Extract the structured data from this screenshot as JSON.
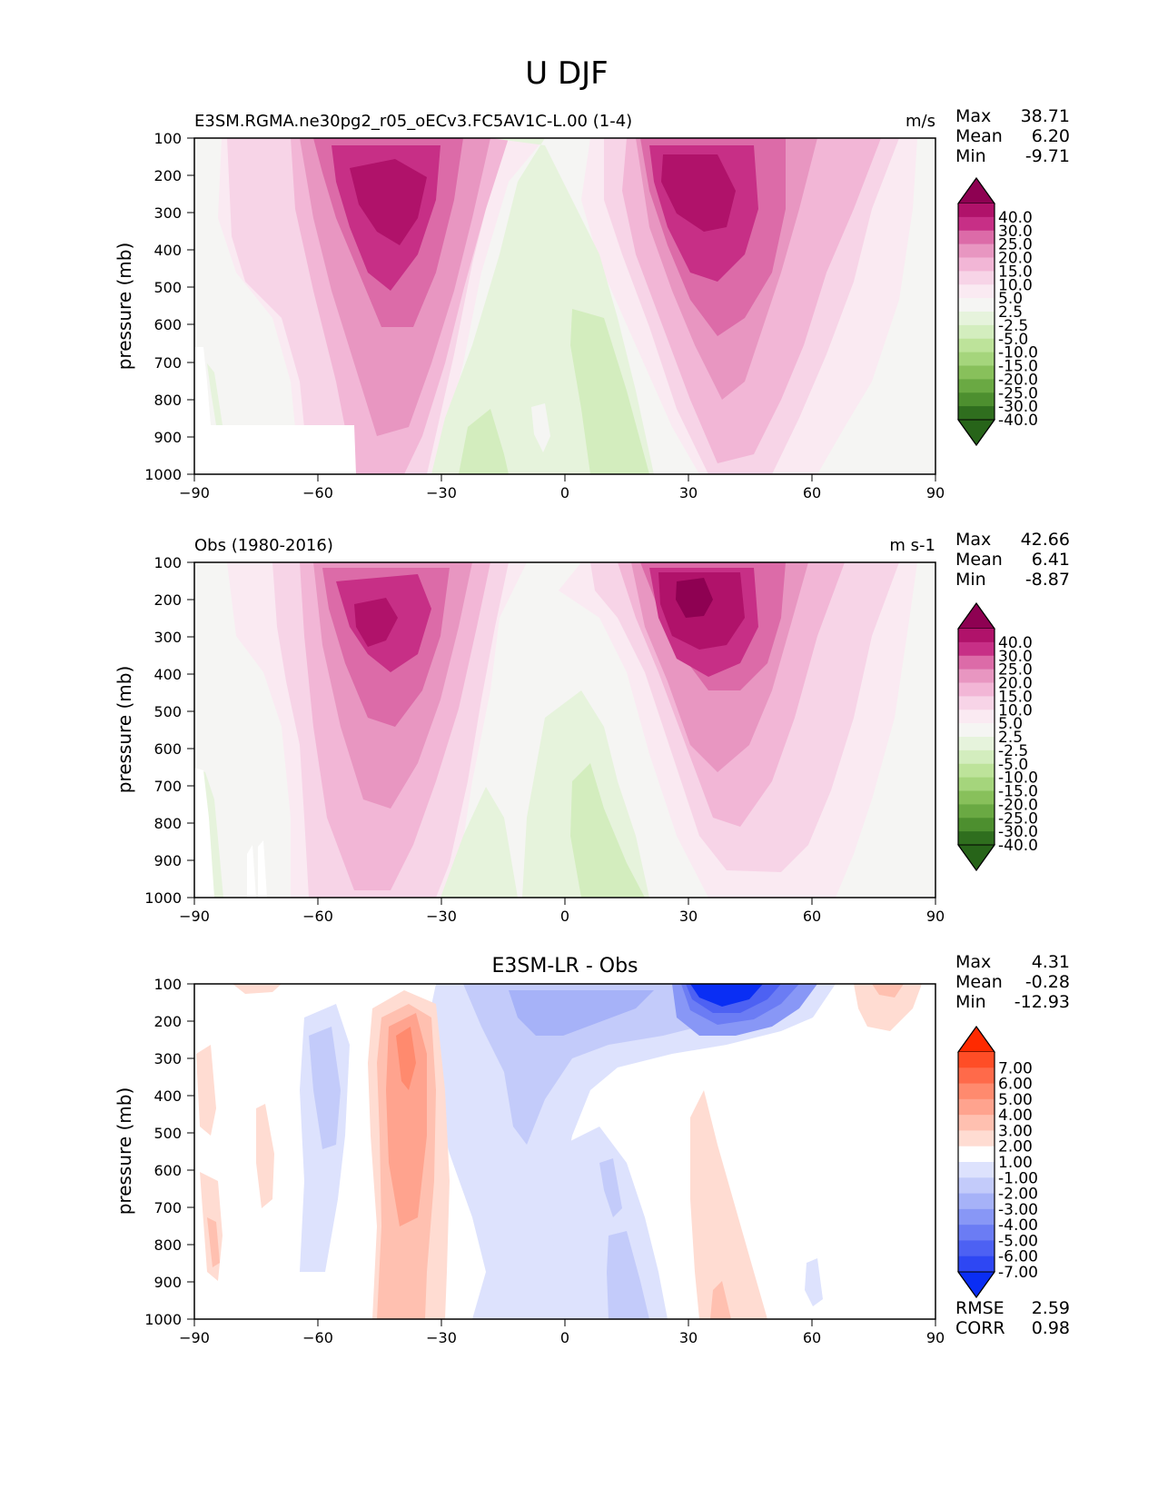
{
  "figure": {
    "title": "U DJF"
  },
  "chart_data": [
    {
      "type": "heatmap",
      "title": "E3SM.RGMA.ne30pg2_r05_oECv3.FC5AV1C-L.00 (1-4)",
      "units": "m/s",
      "xlabel": "",
      "ylabel": "pressure (mb)",
      "xlim": [
        -90,
        90
      ],
      "ylim": [
        1000,
        100
      ],
      "xticks": [
        "−90",
        "−60",
        "−30",
        "0",
        "30",
        "60",
        "90"
      ],
      "yticks": [
        "100",
        "200",
        "300",
        "400",
        "500",
        "600",
        "700",
        "800",
        "900",
        "1000"
      ],
      "stats": {
        "max_label": "Max",
        "max": "38.71",
        "mean_label": "Mean",
        "mean": "6.20",
        "min_label": "Min",
        "min": "-9.71"
      },
      "colorbar": {
        "labels": [
          "40.0",
          "30.0",
          "25.0",
          "20.0",
          "15.0",
          "10.0",
          "5.0",
          "2.5",
          "-2.5",
          "-5.0",
          "-10.0",
          "-15.0",
          "-20.0",
          "-25.0",
          "-30.0",
          "-40.0"
        ],
        "colors": [
          "#8e0152",
          "#b0126a",
          "#c72f86",
          "#dc6ba8",
          "#e896c1",
          "#f2b6d6",
          "#f7d4e7",
          "#faeaf2",
          "#f5f5f3",
          "#e6f3dc",
          "#d3edbe",
          "#bde39a",
          "#a5d57c",
          "#88c05b",
          "#6aa943",
          "#4d8f2f",
          "#2f6e1e",
          "#276419"
        ]
      },
      "jets": [
        {
          "lat": -45,
          "pressure": 250,
          "peak": 38.7
        },
        {
          "lat": 28,
          "pressure": 230,
          "peak": 35
        }
      ],
      "easterlies": [
        {
          "lat": 5,
          "pressure": 780,
          "min": -8
        },
        {
          "lat": -20,
          "pressure": 920,
          "min": -9.7
        }
      ]
    },
    {
      "type": "heatmap",
      "title": "Obs (1980-2016)",
      "units": "m s-1",
      "xlabel": "",
      "ylabel": "pressure (mb)",
      "xlim": [
        -90,
        90
      ],
      "ylim": [
        1000,
        100
      ],
      "xticks": [
        "−90",
        "−60",
        "−30",
        "0",
        "30",
        "60",
        "90"
      ],
      "yticks": [
        "100",
        "200",
        "300",
        "400",
        "500",
        "600",
        "700",
        "800",
        "900",
        "1000"
      ],
      "stats": {
        "max_label": "Max",
        "max": "42.66",
        "mean_label": "Mean",
        "mean": "6.41",
        "min_label": "Min",
        "min": "-8.87"
      },
      "colorbar": {
        "labels": [
          "40.0",
          "30.0",
          "25.0",
          "20.0",
          "15.0",
          "10.0",
          "5.0",
          "2.5",
          "-2.5",
          "-5.0",
          "-10.0",
          "-15.0",
          "-20.0",
          "-25.0",
          "-30.0",
          "-40.0"
        ],
        "colors": [
          "#8e0152",
          "#b0126a",
          "#c72f86",
          "#dc6ba8",
          "#e896c1",
          "#f2b6d6",
          "#f7d4e7",
          "#faeaf2",
          "#f5f5f3",
          "#e6f3dc",
          "#d3edbe",
          "#bde39a",
          "#a5d57c",
          "#88c05b",
          "#6aa943",
          "#4d8f2f",
          "#2f6e1e",
          "#276419"
        ]
      },
      "jets": [
        {
          "lat": -48,
          "pressure": 230,
          "peak": 34
        },
        {
          "lat": 31,
          "pressure": 220,
          "peak": 42.7
        }
      ],
      "easterlies": [
        {
          "lat": 7,
          "pressure": 800,
          "min": -8.9
        },
        {
          "lat": -18,
          "pressure": 900,
          "min": -7
        }
      ]
    },
    {
      "type": "heatmap",
      "title": "E3SM-LR - Obs",
      "units": "",
      "xlabel": "",
      "ylabel": "pressure (mb)",
      "xlim": [
        -90,
        90
      ],
      "ylim": [
        1000,
        100
      ],
      "xticks": [
        "−90",
        "−60",
        "−30",
        "0",
        "30",
        "60",
        "90"
      ],
      "yticks": [
        "100",
        "200",
        "300",
        "400",
        "500",
        "600",
        "700",
        "800",
        "900",
        "1000"
      ],
      "stats": {
        "max_label": "Max",
        "max": "4.31",
        "mean_label": "Mean",
        "mean": "-0.28",
        "min_label": "Min",
        "min": "-12.93"
      },
      "metrics": {
        "rmse_label": "RMSE",
        "rmse": "2.59",
        "corr_label": "CORR",
        "corr": "0.98"
      },
      "colorbar": {
        "labels": [
          "7.00",
          "6.00",
          "5.00",
          "4.00",
          "3.00",
          "2.00",
          "1.00",
          "-1.00",
          "-2.00",
          "-3.00",
          "-4.00",
          "-5.00",
          "-6.00",
          "-7.00"
        ],
        "colors": [
          "#ff2a00",
          "#ff4d26",
          "#ff6a4a",
          "#ff8a6e",
          "#ffa38e",
          "#ffc0b0",
          "#ffdcd2",
          "#ffffff",
          "#dde2fd",
          "#c3cbfa",
          "#a6b2f8",
          "#8897f6",
          "#6b7cf4",
          "#4d61f3",
          "#2e47f3",
          "#0a2ef4"
        ]
      },
      "anomalies": [
        {
          "lat": -40,
          "pressure": 300,
          "value": 4.3
        },
        {
          "lat": 37,
          "pressure": 150,
          "value": -12.9
        },
        {
          "lat": -5,
          "pressure": 200,
          "value": -4
        },
        {
          "lat": -58,
          "pressure": 400,
          "value": -3
        }
      ]
    }
  ]
}
